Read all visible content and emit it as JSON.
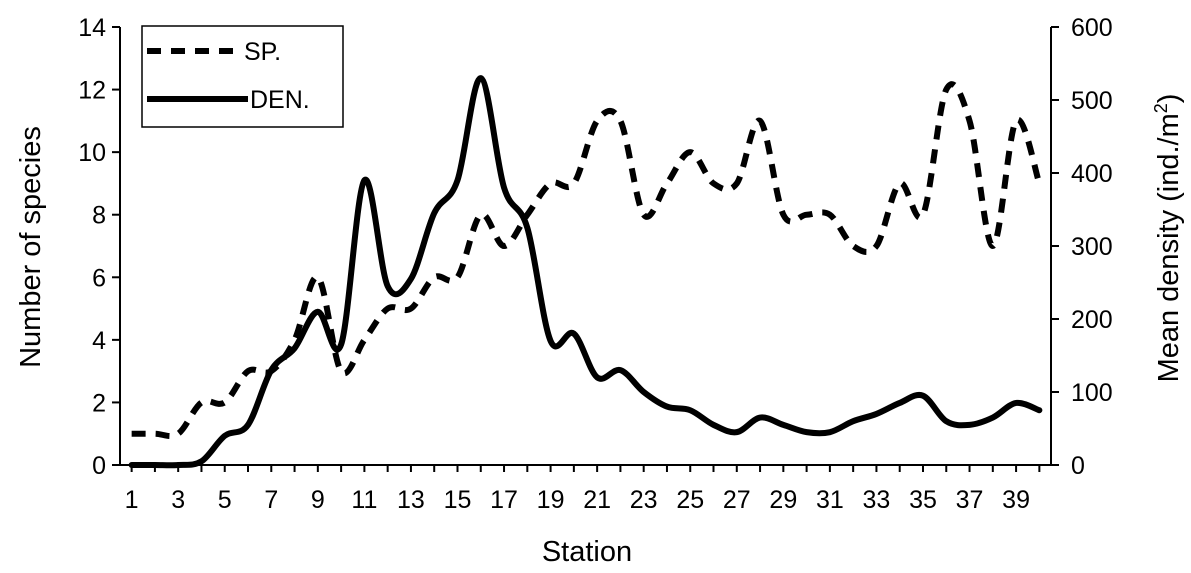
{
  "chart_data": {
    "type": "line",
    "title": "",
    "xlabel": "Station",
    "ylabel": "Number of species",
    "y2label": "Mean density (ind./m",
    "y2label_sup": "2",
    "y2label_close": ")",
    "x": [
      1,
      2,
      3,
      4,
      5,
      6,
      7,
      8,
      9,
      10,
      11,
      12,
      13,
      14,
      15,
      16,
      17,
      18,
      19,
      20,
      21,
      22,
      23,
      24,
      25,
      26,
      27,
      28,
      29,
      30,
      31,
      32,
      33,
      34,
      35,
      36,
      37,
      38,
      39,
      40
    ],
    "x_tick_labels": [
      "1",
      "3",
      "5",
      "7",
      "9",
      "11",
      "13",
      "15",
      "17",
      "19",
      "21",
      "23",
      "25",
      "27",
      "29",
      "31",
      "33",
      "35",
      "37",
      "39"
    ],
    "y_ticks": [
      "0",
      "2",
      "4",
      "6",
      "8",
      "10",
      "12",
      "14"
    ],
    "y2_ticks": [
      "0",
      "100",
      "200",
      "300",
      "400",
      "500",
      "600"
    ],
    "ylim": [
      0,
      14
    ],
    "y2lim": [
      0,
      600
    ],
    "grid": false,
    "legend_position": "top-left",
    "series": [
      {
        "name": "SP.",
        "axis": "left",
        "style": "dashed",
        "values": [
          1,
          1,
          1,
          2,
          2,
          3,
          3,
          4,
          6,
          3,
          4,
          5,
          5,
          6,
          6,
          8,
          7,
          8,
          9,
          9,
          11,
          11,
          8,
          9,
          10,
          9,
          9,
          11,
          8,
          8,
          8,
          7,
          7,
          9,
          8,
          12,
          11,
          7,
          11,
          9
        ]
      },
      {
        "name": "DEN.",
        "axis": "right",
        "style": "solid",
        "values": [
          0,
          0,
          0,
          5,
          40,
          55,
          130,
          160,
          210,
          165,
          390,
          245,
          255,
          345,
          390,
          530,
          380,
          325,
          170,
          180,
          120,
          130,
          100,
          80,
          75,
          55,
          45,
          65,
          55,
          45,
          45,
          60,
          70,
          85,
          95,
          60,
          55,
          65,
          85,
          75
        ]
      }
    ]
  }
}
